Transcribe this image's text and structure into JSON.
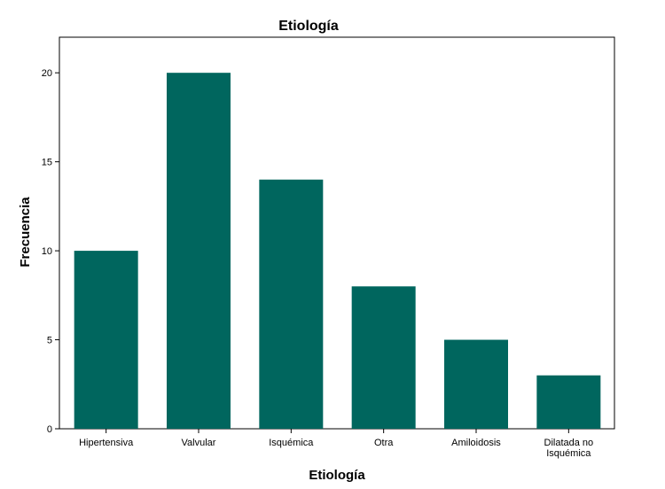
{
  "chart_data": {
    "type": "bar",
    "title": "Etiología",
    "xlabel": "Etiología",
    "ylabel": "Frecuencia",
    "categories": [
      [
        "Hipertensiva"
      ],
      [
        "Valvular"
      ],
      [
        "Isquémica"
      ],
      [
        "Otra"
      ],
      [
        "Amiloidosis"
      ],
      [
        "Dilatada no",
        "Isquémica"
      ]
    ],
    "values": [
      10,
      20,
      14,
      8,
      5,
      3
    ],
    "ylim": [
      0,
      22
    ],
    "yticks": [
      0,
      5,
      10,
      15,
      20
    ],
    "bar_color": "#00665E",
    "grid": false,
    "legend": "none"
  }
}
